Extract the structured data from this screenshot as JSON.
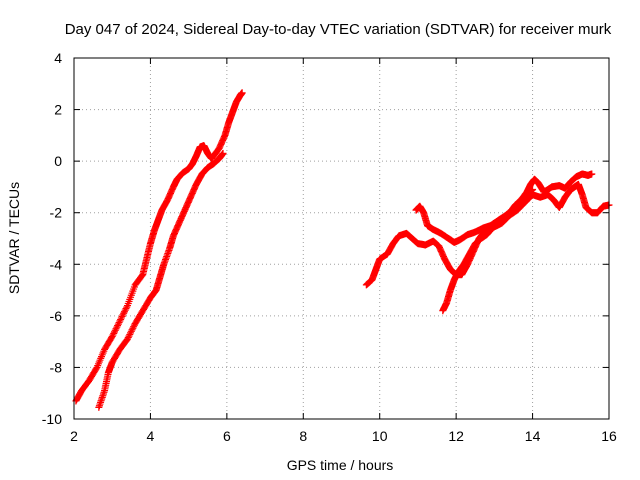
{
  "chart_data": {
    "type": "scatter",
    "title": "Day 047 of 2024, Sidereal Day-to-day VTEC variation (SDTVAR) for receiver murk",
    "xlabel": "GPS time / hours",
    "ylabel": "SDTVAR / TECUs",
    "xlim": [
      2,
      16
    ],
    "ylim": [
      -10,
      4
    ],
    "xticks": [
      "2",
      "4",
      "6",
      "8",
      "10",
      "12",
      "14",
      "16"
    ],
    "yticks": [
      "4",
      "2",
      "0",
      "-2",
      "-4",
      "-6",
      "-8",
      "-10"
    ],
    "grid": true,
    "marker": "+",
    "color": "#ff0000",
    "series": [
      {
        "points": [
          [
            2.05,
            -9.3
          ],
          [
            2.2,
            -8.9
          ],
          [
            2.4,
            -8.5
          ],
          [
            2.6,
            -8.0
          ],
          [
            2.8,
            -7.3
          ],
          [
            3.0,
            -6.8
          ],
          [
            3.2,
            -6.2
          ],
          [
            3.4,
            -5.6
          ],
          [
            3.6,
            -4.8
          ],
          [
            3.8,
            -4.4
          ],
          [
            3.9,
            -3.8
          ],
          [
            4.0,
            -3.2
          ],
          [
            4.1,
            -2.7
          ],
          [
            4.2,
            -2.3
          ],
          [
            4.3,
            -1.9
          ],
          [
            4.45,
            -1.5
          ],
          [
            4.6,
            -1.0
          ],
          [
            4.7,
            -0.7
          ],
          [
            4.85,
            -0.45
          ],
          [
            5.0,
            -0.3
          ],
          [
            5.1,
            -0.1
          ],
          [
            5.2,
            0.2
          ],
          [
            5.3,
            0.55
          ],
          [
            5.4,
            0.6
          ],
          [
            5.5,
            0.3
          ],
          [
            5.6,
            0.1
          ],
          [
            5.8,
            0.5
          ],
          [
            5.95,
            1.0
          ],
          [
            6.05,
            1.5
          ],
          [
            6.15,
            1.9
          ],
          [
            6.25,
            2.3
          ],
          [
            6.35,
            2.55
          ],
          [
            6.4,
            2.65
          ]
        ]
      },
      {
        "points": [
          [
            2.65,
            -9.55
          ],
          [
            2.8,
            -8.9
          ],
          [
            2.9,
            -8.2
          ],
          [
            3.0,
            -7.8
          ],
          [
            3.2,
            -7.3
          ],
          [
            3.4,
            -6.9
          ],
          [
            3.6,
            -6.3
          ],
          [
            3.8,
            -5.8
          ],
          [
            4.0,
            -5.3
          ],
          [
            4.15,
            -5.0
          ],
          [
            4.25,
            -4.5
          ],
          [
            4.35,
            -4.0
          ],
          [
            4.5,
            -3.4
          ],
          [
            4.6,
            -2.9
          ],
          [
            4.75,
            -2.4
          ],
          [
            4.9,
            -1.9
          ],
          [
            5.05,
            -1.4
          ],
          [
            5.2,
            -0.9
          ],
          [
            5.35,
            -0.5
          ],
          [
            5.5,
            -0.25
          ],
          [
            5.65,
            -0.1
          ],
          [
            5.8,
            0.1
          ],
          [
            5.9,
            0.3
          ]
        ]
      },
      {
        "points": [
          [
            9.65,
            -4.8
          ],
          [
            9.8,
            -4.6
          ],
          [
            9.9,
            -4.2
          ],
          [
            10.0,
            -3.8
          ],
          [
            10.2,
            -3.6
          ],
          [
            10.35,
            -3.2
          ],
          [
            10.5,
            -2.9
          ],
          [
            10.7,
            -2.8
          ],
          [
            10.85,
            -3.0
          ],
          [
            11.0,
            -3.2
          ],
          [
            11.2,
            -3.25
          ],
          [
            11.4,
            -3.1
          ],
          [
            11.55,
            -3.3
          ],
          [
            11.7,
            -3.8
          ],
          [
            11.85,
            -4.2
          ],
          [
            12.0,
            -4.4
          ],
          [
            12.15,
            -4.4
          ],
          [
            12.3,
            -4.0
          ],
          [
            12.45,
            -3.5
          ],
          [
            12.6,
            -3.0
          ],
          [
            12.8,
            -2.6
          ],
          [
            13.0,
            -2.55
          ],
          [
            13.2,
            -2.4
          ],
          [
            13.4,
            -2.1
          ],
          [
            13.6,
            -1.9
          ],
          [
            13.8,
            -1.6
          ],
          [
            14.0,
            -1.3
          ],
          [
            14.2,
            -1.4
          ],
          [
            14.4,
            -1.3
          ],
          [
            14.55,
            -1.5
          ],
          [
            14.7,
            -1.8
          ],
          [
            14.85,
            -1.4
          ],
          [
            15.0,
            -1.1
          ],
          [
            15.1,
            -1.0
          ],
          [
            15.2,
            -0.9
          ],
          [
            15.3,
            -1.3
          ],
          [
            15.4,
            -1.8
          ],
          [
            15.55,
            -2.0
          ],
          [
            15.7,
            -2.0
          ],
          [
            15.85,
            -1.75
          ],
          [
            16.0,
            -1.7
          ]
        ]
      },
      {
        "points": [
          [
            10.95,
            -1.9
          ],
          [
            11.05,
            -1.75
          ],
          [
            11.15,
            -2.0
          ],
          [
            11.25,
            -2.5
          ],
          [
            11.4,
            -2.65
          ],
          [
            11.6,
            -2.8
          ],
          [
            11.8,
            -3.0
          ],
          [
            11.95,
            -3.15
          ],
          [
            12.1,
            -3.05
          ],
          [
            12.3,
            -2.85
          ],
          [
            12.5,
            -2.75
          ],
          [
            12.7,
            -2.6
          ],
          [
            12.9,
            -2.5
          ],
          [
            13.1,
            -2.3
          ],
          [
            13.3,
            -2.1
          ],
          [
            13.5,
            -1.85
          ],
          [
            13.7,
            -1.5
          ],
          [
            13.85,
            -1.2
          ],
          [
            13.95,
            -0.9
          ],
          [
            14.05,
            -0.7
          ],
          [
            14.15,
            -0.85
          ],
          [
            14.3,
            -1.2
          ],
          [
            14.5,
            -1.0
          ],
          [
            14.7,
            -0.95
          ],
          [
            14.85,
            -1.05
          ],
          [
            15.0,
            -0.8
          ],
          [
            15.15,
            -0.6
          ],
          [
            15.3,
            -0.5
          ],
          [
            15.45,
            -0.55
          ],
          [
            15.55,
            -0.5
          ]
        ]
      },
      {
        "points": [
          [
            11.65,
            -5.8
          ],
          [
            11.75,
            -5.5
          ],
          [
            11.85,
            -5.0
          ],
          [
            11.95,
            -4.6
          ],
          [
            12.05,
            -4.3
          ],
          [
            12.2,
            -4.0
          ],
          [
            12.35,
            -3.6
          ],
          [
            12.5,
            -3.2
          ],
          [
            12.65,
            -3.0
          ],
          [
            12.8,
            -2.85
          ],
          [
            12.95,
            -2.6
          ],
          [
            13.1,
            -2.3
          ],
          [
            13.25,
            -2.2
          ],
          [
            13.4,
            -2.0
          ],
          [
            13.55,
            -1.7
          ],
          [
            13.7,
            -1.5
          ],
          [
            13.8,
            -1.35
          ],
          [
            13.9,
            -1.2
          ],
          [
            14.0,
            -1.1
          ]
        ]
      }
    ]
  }
}
